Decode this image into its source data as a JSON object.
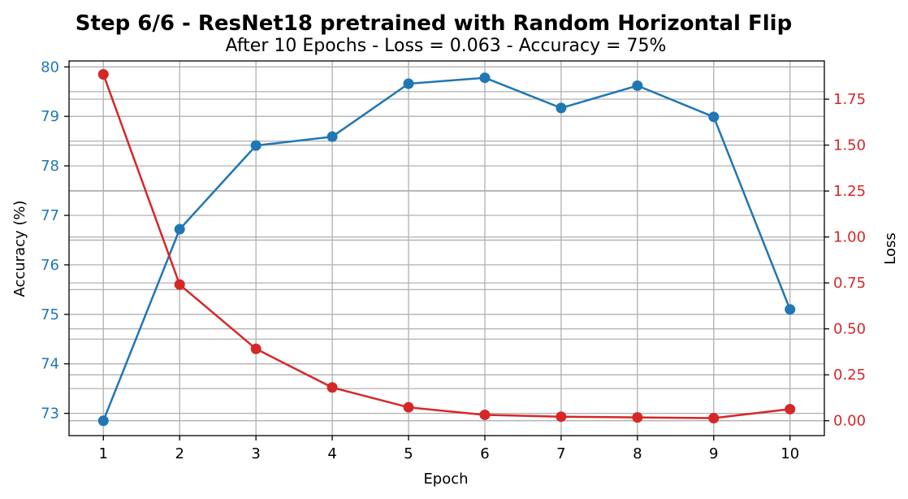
{
  "chart_data": {
    "type": "line",
    "title": "Step 6/6 - ResNet18 pretrained with Random Horizontal Flip",
    "subtitle": "After 10 Epochs - Loss = 0.063 - Accuracy = 75%",
    "xlabel": "Epoch",
    "ylabel_left": "Accuracy (%)",
    "ylabel_right": "Loss",
    "x": [
      1,
      2,
      3,
      4,
      5,
      6,
      7,
      8,
      9,
      10
    ],
    "x_ticks": [
      "1",
      "2",
      "3",
      "4",
      "5",
      "6",
      "7",
      "8",
      "9",
      "10"
    ],
    "xlim": [
      0.55,
      10.45
    ],
    "y_left": {
      "lim": [
        72.55,
        80.12
      ],
      "ticks": [
        73,
        74,
        75,
        76,
        77,
        78,
        79,
        80
      ],
      "tick_labels": [
        "73",
        "74",
        "75",
        "76",
        "77",
        "78",
        "79",
        "80"
      ],
      "minor_grid": [
        73.5,
        74.5,
        75.5,
        76.5,
        77.5,
        78.5,
        79.5
      ]
    },
    "y_right": {
      "lim": [
        -0.081,
        1.958
      ],
      "ticks": [
        0.0,
        0.25,
        0.5,
        0.75,
        1.0,
        1.25,
        1.5,
        1.75
      ],
      "tick_labels": [
        "0.00",
        "0.25",
        "0.50",
        "0.75",
        "1.00",
        "1.25",
        "1.50",
        "1.75"
      ]
    },
    "grid": true,
    "series": [
      {
        "axis": "left",
        "color": "#1f77b4",
        "values": [
          72.85,
          76.72,
          78.41,
          78.59,
          79.66,
          79.78,
          79.17,
          79.62,
          78.99,
          75.1
        ]
      },
      {
        "axis": "right",
        "color": "#d62728",
        "values": [
          1.885,
          0.741,
          0.391,
          0.181,
          0.073,
          0.032,
          0.022,
          0.018,
          0.014,
          0.063
        ]
      }
    ]
  }
}
